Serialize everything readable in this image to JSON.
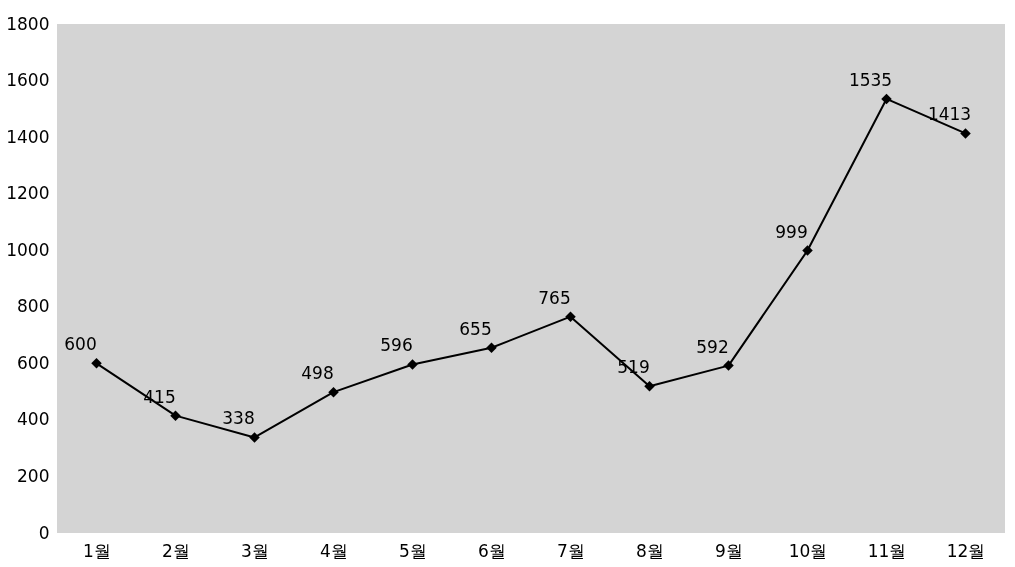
{
  "chart_data": {
    "type": "line",
    "categories": [
      "1월",
      "2월",
      "3월",
      "4월",
      "5월",
      "6월",
      "7월",
      "8월",
      "9월",
      "10월",
      "11월",
      "12월"
    ],
    "series": [
      {
        "color": "#000000",
        "values": [
          600,
          415,
          338,
          498,
          596,
          655,
          765,
          519,
          592,
          999,
          1535,
          1413
        ]
      }
    ],
    "ylim": [
      0,
      1800
    ],
    "yticks": [
      0,
      200,
      400,
      600,
      800,
      1000,
      1200,
      1400,
      1600,
      1800
    ],
    "marker": "diamond",
    "data_labels": true,
    "grid": false
  }
}
